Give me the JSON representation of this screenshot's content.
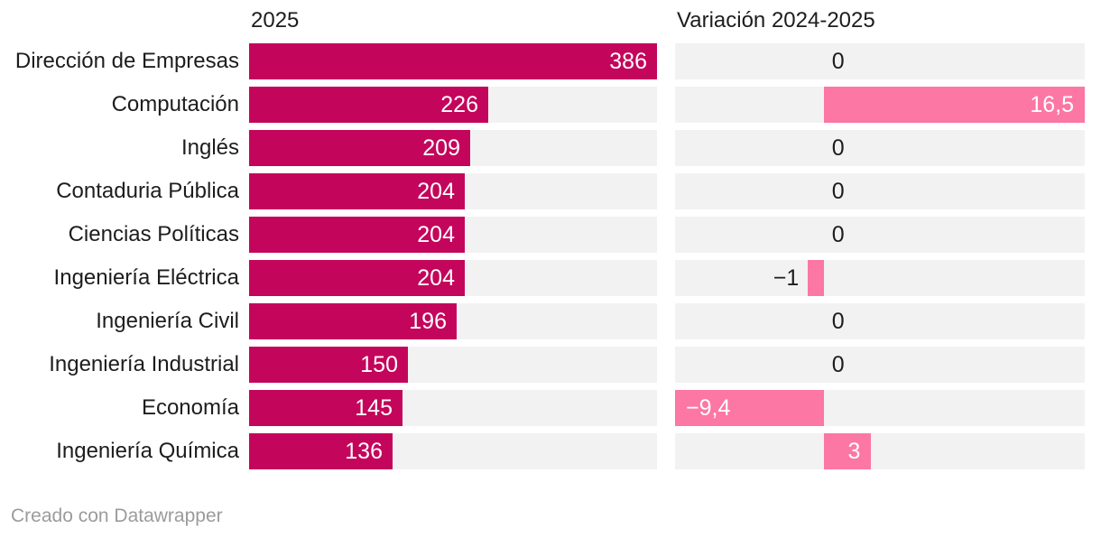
{
  "footer": {
    "text": "Creado con Datawrapper"
  },
  "headers": {
    "col_left": "2025",
    "col_right": "Variación 2024-2025"
  },
  "colors": {
    "bar_2025": "#c4055c",
    "bar_variation": "#fc77a4",
    "track": "#f2f2f2",
    "text": "#1d1d1d",
    "value_inside": "#ffffff",
    "footer_text": "#9b9b9b",
    "background": "#ffffff"
  },
  "chart_data": {
    "type": "bar",
    "subtype": "split-bars-horizontal",
    "title": "",
    "categories": [
      "Dirección de Empresas",
      "Computación",
      "Inglés",
      "Contaduria Pública",
      "Ciencias Políticas",
      "Ingeniería Eléctrica",
      "Ingeniería Civil",
      "Ingeniería Industrial",
      "Economía",
      "Ingeniería Química"
    ],
    "series": [
      {
        "name": "2025",
        "values": [
          386,
          226,
          209,
          204,
          204,
          204,
          196,
          150,
          145,
          136
        ],
        "labels": [
          "386",
          "226",
          "209",
          "204",
          "204",
          "204",
          "196",
          "150",
          "145",
          "136"
        ],
        "axis_min": 0,
        "axis_max": 386
      },
      {
        "name": "Variación 2024-2025",
        "values": [
          0,
          16.5,
          0,
          0,
          0,
          -1,
          0,
          0,
          -9.4,
          3
        ],
        "labels": [
          "0",
          "16,5",
          "0",
          "0",
          "0",
          "−1",
          "0",
          "0",
          "−9,4",
          "3"
        ],
        "axis_min": -9.4,
        "axis_max": 16.5
      }
    ],
    "grid": false,
    "legend_position": "none",
    "value_labels": "on-bars",
    "attribution": "Creado con Datawrapper"
  }
}
